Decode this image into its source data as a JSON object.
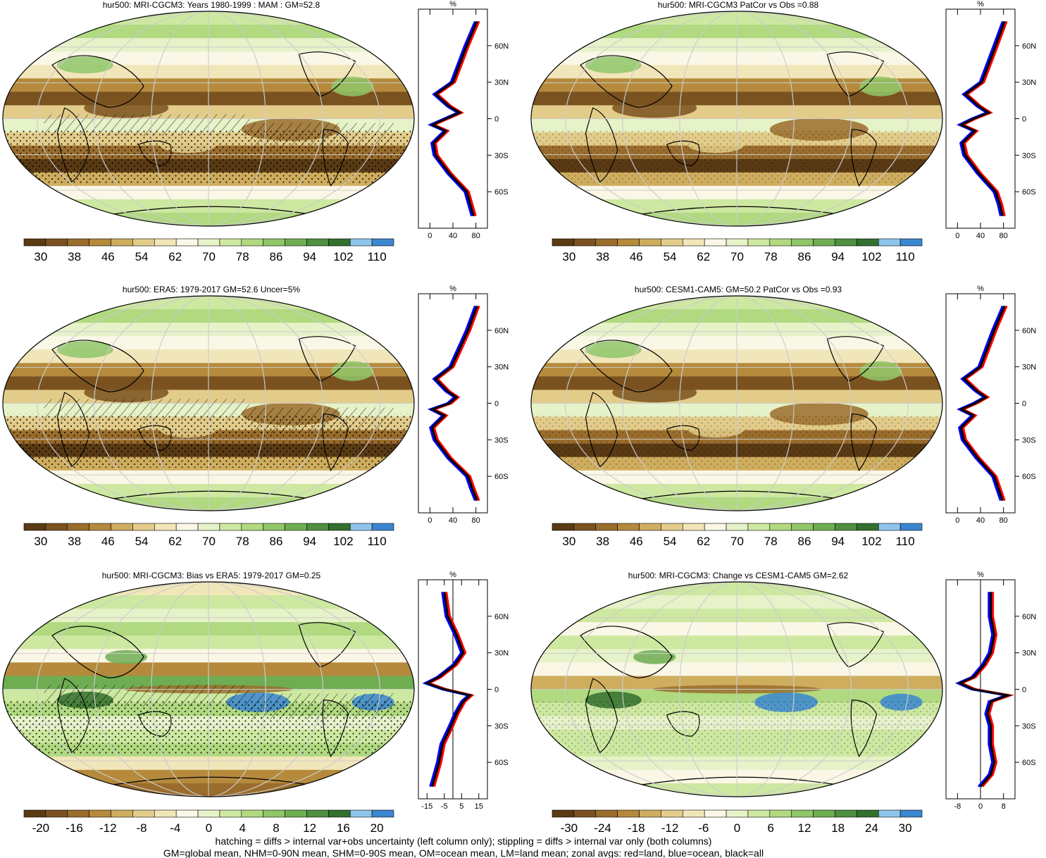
{
  "panels": [
    {
      "title": "hur500: MRI-CGCM3: Years 1980-1999 : MAM : GM=52.8",
      "kind": "clim",
      "colorbar_labels": [
        "30",
        "38",
        "46",
        "54",
        "62",
        "70",
        "78",
        "86",
        "94",
        "102",
        "110"
      ],
      "zonal_unit": "%",
      "zonal_x_ticks": [
        "0",
        "40",
        "80"
      ],
      "zonal_lat_labels": [
        "60N",
        "30N",
        "0",
        "30S",
        "60S"
      ]
    },
    {
      "title": "hur500: MRI-CGCM3 PatCor vs Obs =0.88",
      "kind": "clim",
      "colorbar_labels": [
        "30",
        "38",
        "46",
        "54",
        "62",
        "70",
        "78",
        "86",
        "94",
        "102",
        "110"
      ],
      "zonal_unit": "%",
      "zonal_x_ticks": [
        "0",
        "40",
        "80"
      ],
      "zonal_lat_labels": [
        "60N",
        "30N",
        "0",
        "30S",
        "60S"
      ]
    },
    {
      "title": "hur500: ERA5: 1979-2017 GM=52.6 Uncer=5%",
      "kind": "clim",
      "colorbar_labels": [
        "30",
        "38",
        "46",
        "54",
        "62",
        "70",
        "78",
        "86",
        "94",
        "102",
        "110"
      ],
      "zonal_unit": "%",
      "zonal_x_ticks": [
        "0",
        "40",
        "80"
      ],
      "zonal_lat_labels": [
        "60N",
        "30N",
        "0",
        "30S",
        "60S"
      ]
    },
    {
      "title": "hur500: CESM1-CAM5: GM=50.2 PatCor vs Obs =0.93",
      "kind": "clim",
      "colorbar_labels": [
        "30",
        "38",
        "46",
        "54",
        "62",
        "70",
        "78",
        "86",
        "94",
        "102",
        "110"
      ],
      "zonal_unit": "%",
      "zonal_x_ticks": [
        "0",
        "40",
        "80"
      ],
      "zonal_lat_labels": [
        "60N",
        "30N",
        "0",
        "30S",
        "60S"
      ]
    },
    {
      "title": "hur500: MRI-CGCM3: Bias vs ERA5: 1979-2017 GM=0.25",
      "kind": "diff",
      "colorbar_labels": [
        "-20",
        "-16",
        "-12",
        "-8",
        "-4",
        "0",
        "4",
        "8",
        "12",
        "16",
        "20"
      ],
      "zonal_unit": "%",
      "zonal_x_ticks": [
        "-15",
        "-5",
        "5",
        "15"
      ],
      "zonal_lat_labels": [
        "60N",
        "30N",
        "0",
        "30S",
        "60S"
      ]
    },
    {
      "title": "hur500: MRI-CGCM3: Change vs CESM1-CAM5 GM=2.62",
      "kind": "diff",
      "colorbar_labels": [
        "-30",
        "-24",
        "-18",
        "-12",
        "-6",
        "0",
        "6",
        "12",
        "18",
        "24",
        "30"
      ],
      "zonal_unit": "%",
      "zonal_x_ticks": [
        "-8",
        "0",
        "8"
      ],
      "zonal_lat_labels": [
        "60N",
        "30N",
        "0",
        "30S",
        "60S"
      ]
    }
  ],
  "palette": {
    "clim": [
      "#5a3a14",
      "#7a5220",
      "#9a6d2c",
      "#b58a3c",
      "#cfad5e",
      "#e3cc8a",
      "#f1e6b9",
      "#fbf7e6",
      "#e6f2c8",
      "#cde8a0",
      "#b0d980",
      "#8fc668",
      "#6fad52",
      "#4f8f40",
      "#336f2d",
      "#8fc4ea",
      "#3a86d0"
    ],
    "diff": [
      "#5a3a14",
      "#7a5220",
      "#9a6d2c",
      "#b58a3c",
      "#cfad5e",
      "#e3cc8a",
      "#f1e6b9",
      "#fbf7e6",
      "#e6f2c8",
      "#cde8a0",
      "#b0d980",
      "#8fc668",
      "#6fad52",
      "#4f8f40",
      "#336f2d",
      "#8fc4ea",
      "#3a86d0"
    ],
    "zonal_land": "#ff0000",
    "zonal_ocean": "#0000ff",
    "zonal_all": "#000000"
  },
  "chart_data": [
    {
      "type": "map",
      "name": "MRI-CGCM3 climatology MAM",
      "global_mean": 52.8,
      "zonal": {
        "lat": [
          80,
          60,
          45,
          30,
          20,
          10,
          5,
          0,
          -5,
          -10,
          -20,
          -30,
          -45,
          -60,
          -70,
          -80
        ],
        "all": [
          85,
          70,
          60,
          50,
          25,
          45,
          60,
          40,
          20,
          40,
          22,
          25,
          45,
          70,
          75,
          80
        ]
      }
    },
    {
      "type": "map",
      "name": "MRI-CGCM3 PatCor vs Obs",
      "pattern_correlation": 0.88,
      "zonal": {
        "lat": [
          80,
          60,
          45,
          30,
          20,
          10,
          5,
          0,
          -5,
          -10,
          -20,
          -30,
          -45,
          -60,
          -70,
          -80
        ],
        "all": [
          85,
          72,
          62,
          52,
          28,
          48,
          62,
          40,
          22,
          42,
          24,
          28,
          48,
          72,
          78,
          82
        ]
      }
    },
    {
      "type": "map",
      "name": "ERA5 climatology",
      "global_mean": 52.6,
      "uncertainty_percent": 5,
      "zonal": {
        "lat": [
          80,
          60,
          45,
          30,
          20,
          10,
          5,
          0,
          -5,
          -10,
          -20,
          -30,
          -45,
          -60,
          -70,
          -80
        ],
        "all": [
          85,
          72,
          60,
          48,
          25,
          42,
          55,
          45,
          20,
          38,
          20,
          25,
          45,
          72,
          78,
          85
        ]
      }
    },
    {
      "type": "map",
      "name": "CESM1-CAM5 climatology",
      "global_mean": 50.2,
      "pattern_correlation": 0.93,
      "zonal": {
        "lat": [
          80,
          60,
          45,
          30,
          20,
          10,
          5,
          0,
          -5,
          -10,
          -20,
          -30,
          -45,
          -60,
          -70,
          -80
        ],
        "all": [
          85,
          70,
          60,
          50,
          26,
          45,
          58,
          42,
          22,
          40,
          22,
          26,
          46,
          70,
          76,
          82
        ]
      }
    },
    {
      "type": "map",
      "name": "MRI-CGCM3 Bias vs ERA5",
      "global_mean": 0.25,
      "zonal": {
        "lat": [
          80,
          60,
          45,
          30,
          20,
          10,
          5,
          0,
          -5,
          -10,
          -20,
          -30,
          -45,
          -60,
          -70,
          -80
        ],
        "all": [
          -5,
          -3,
          2,
          6,
          1,
          -8,
          -15,
          -5,
          10,
          6,
          2,
          -1,
          -6,
          -8,
          -10,
          -12
        ]
      }
    },
    {
      "type": "map",
      "name": "MRI-CGCM3 Change vs CESM1-CAM5",
      "global_mean": 2.62,
      "zonal": {
        "lat": [
          80,
          60,
          45,
          30,
          20,
          10,
          5,
          0,
          -5,
          -10,
          -20,
          -30,
          -45,
          -60,
          -70,
          -80
        ],
        "all": [
          3,
          3,
          4,
          3,
          1,
          -2,
          -6,
          -2,
          8,
          3,
          2,
          3,
          3,
          4,
          3,
          0
        ]
      }
    }
  ],
  "footer": {
    "line1": "hatching = diffs > internal var+obs uncertainty (left column only); stippling = diffs > internal var only (both columns)",
    "line2": "GM=global mean, NHM=0-90N mean, SHM=0-90S mean, OM=ocean mean, LM=land mean; zonal avgs: red=land, blue=ocean, black=all"
  }
}
